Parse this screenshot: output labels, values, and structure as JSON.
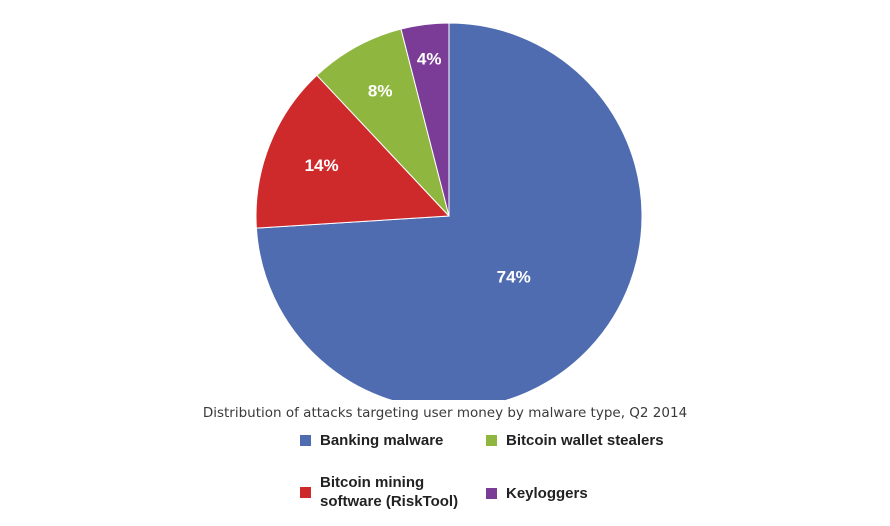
{
  "chart_data": {
    "type": "pie",
    "title": "",
    "caption": "Distribution of attacks targeting user money by malware type, Q2 2014",
    "slices": [
      {
        "name": "Banking malware",
        "value": 74,
        "label": "74%",
        "color": "#4f6cb1"
      },
      {
        "name": "Bitcoin mining\nsoftware (RiskTool)",
        "value": 14,
        "label": "14%",
        "color": "#cf2a2b"
      },
      {
        "name": "Bitcoin wallet stealers",
        "value": 8,
        "label": "8%",
        "color": "#8fb73f"
      },
      {
        "name": "Keyloggers",
        "value": 4,
        "label": "4%",
        "color": "#7b3c98"
      }
    ],
    "legend": {
      "placement": "bottom",
      "columns": 2
    }
  }
}
